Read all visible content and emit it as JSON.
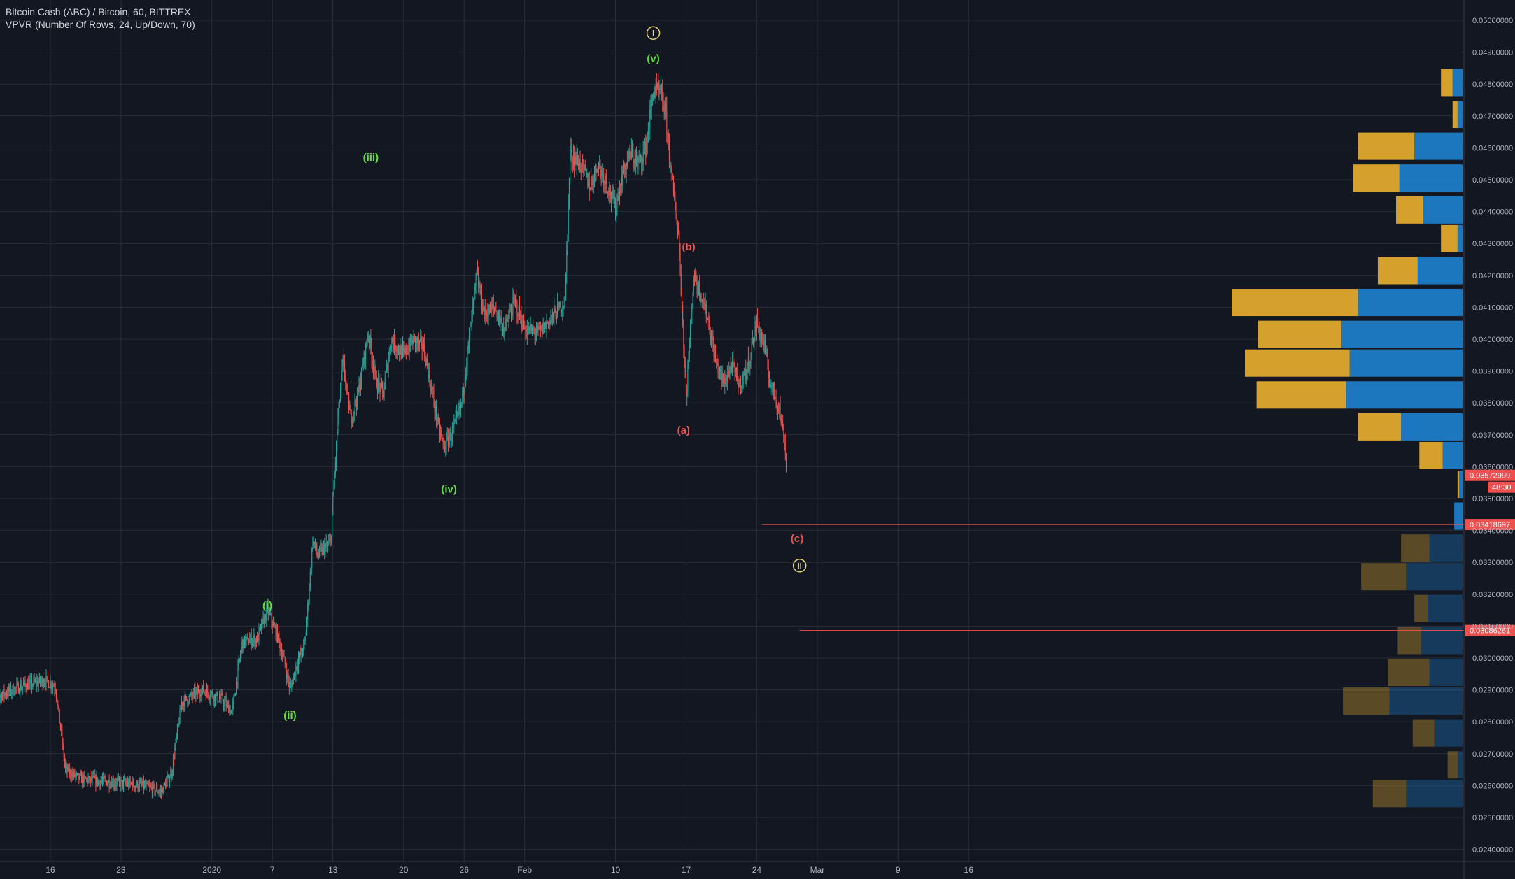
{
  "legend": {
    "symbol": "Bitcoin Cash (ABC) / Bitcoin, 60, BITTREX",
    "indicator": "VPVR (Number Of Rows, 24, Up/Down, 70)"
  },
  "colors": {
    "background": "#131722",
    "grid": "#2a2e39",
    "axis_text": "#b2b5be",
    "candle_up": "#26a69a",
    "candle_down": "#ef5350",
    "wave_green": "#66dd44",
    "wave_red": "#ef5350",
    "wave_yellow": "#e8d27a",
    "vp_up": "#e0a82e",
    "vp_down": "#1e7cc8",
    "level_line": "#ef4f4f",
    "price_tag": "#ef4f4f"
  },
  "chart_data": {
    "type": "candlestick",
    "y_axis": {
      "min": 0.024,
      "max": 0.05,
      "step": 0.001,
      "tick_labels": [
        "0.05000000",
        "0.04900000",
        "0.04800000",
        "0.04700000",
        "0.04600000",
        "0.04500000",
        "0.04400000",
        "0.04300000",
        "0.04200000",
        "0.04100000",
        "0.04000000",
        "0.03900000",
        "0.03800000",
        "0.03700000",
        "0.03600000",
        "0.03500000",
        "0.03400000",
        "0.03300000",
        "0.03200000",
        "0.03100000",
        "0.03000000",
        "0.02900000",
        "0.02800000",
        "0.02700000",
        "0.02600000",
        "0.02500000",
        "0.02400000"
      ]
    },
    "x_axis": {
      "tick_labels": [
        "16",
        "23",
        "2020",
        "7",
        "13",
        "20",
        "26",
        "Feb",
        "10",
        "17",
        "24",
        "Mar",
        "9",
        "16"
      ],
      "tick_dates": [
        "2019-12-16",
        "2019-12-23",
        "2020-01-01",
        "2020-01-07",
        "2020-01-13",
        "2020-01-20",
        "2020-01-26",
        "2020-02-01",
        "2020-02-10",
        "2020-02-17",
        "2020-02-24",
        "2020-03-01",
        "2020-03-09",
        "2020-03-16"
      ]
    },
    "price_path": [
      {
        "date": "2019-12-10T00",
        "price": 0.0287
      },
      {
        "date": "2019-12-13T00",
        "price": 0.0291
      },
      {
        "date": "2019-12-15T12",
        "price": 0.0293
      },
      {
        "date": "2019-12-16T12",
        "price": 0.0291
      },
      {
        "date": "2019-12-17T12",
        "price": 0.0265
      },
      {
        "date": "2019-12-19T00",
        "price": 0.0262
      },
      {
        "date": "2019-12-22T12",
        "price": 0.0261
      },
      {
        "date": "2019-12-25T00",
        "price": 0.026
      },
      {
        "date": "2019-12-27T00",
        "price": 0.0258
      },
      {
        "date": "2019-12-28T00",
        "price": 0.0264
      },
      {
        "date": "2019-12-29T00",
        "price": 0.0286
      },
      {
        "date": "2019-12-31T00",
        "price": 0.029
      },
      {
        "date": "2020-01-02T00",
        "price": 0.0287
      },
      {
        "date": "2020-01-03T00",
        "price": 0.0283
      },
      {
        "date": "2020-01-04T00",
        "price": 0.0305
      },
      {
        "date": "2020-01-05T12",
        "price": 0.0306
      },
      {
        "date": "2020-01-06T12",
        "price": 0.0315
      },
      {
        "date": "2020-01-07T12",
        "price": 0.0307
      },
      {
        "date": "2020-01-08T06",
        "price": 0.0298
      },
      {
        "date": "2020-01-08T18",
        "price": 0.029
      },
      {
        "date": "2020-01-09T12",
        "price": 0.0299
      },
      {
        "date": "2020-01-10T06",
        "price": 0.0305
      },
      {
        "date": "2020-01-11T00",
        "price": 0.0337
      },
      {
        "date": "2020-01-11T12",
        "price": 0.0332
      },
      {
        "date": "2020-01-12T00",
        "price": 0.0334
      },
      {
        "date": "2020-01-12T18",
        "price": 0.0336
      },
      {
        "date": "2020-01-13T12",
        "price": 0.0375
      },
      {
        "date": "2020-01-14T00",
        "price": 0.0393
      },
      {
        "date": "2020-01-14T18",
        "price": 0.0375
      },
      {
        "date": "2020-01-15T12",
        "price": 0.0383
      },
      {
        "date": "2020-01-16T12",
        "price": 0.0402
      },
      {
        "date": "2020-01-17T06",
        "price": 0.0387
      },
      {
        "date": "2020-01-18T00",
        "price": 0.0383
      },
      {
        "date": "2020-01-18T18",
        "price": 0.04
      },
      {
        "date": "2020-01-20T00",
        "price": 0.0395
      },
      {
        "date": "2020-01-21T00",
        "price": 0.04
      },
      {
        "date": "2020-01-22T00",
        "price": 0.0397
      },
      {
        "date": "2020-01-23T00",
        "price": 0.038
      },
      {
        "date": "2020-01-23T12",
        "price": 0.0372
      },
      {
        "date": "2020-01-24T00",
        "price": 0.0366
      },
      {
        "date": "2020-01-25T00",
        "price": 0.0372
      },
      {
        "date": "2020-01-25T18",
        "price": 0.038
      },
      {
        "date": "2020-01-26T12",
        "price": 0.04
      },
      {
        "date": "2020-01-27T06",
        "price": 0.042
      },
      {
        "date": "2020-01-28T00",
        "price": 0.0408
      },
      {
        "date": "2020-01-29T00",
        "price": 0.041
      },
      {
        "date": "2020-01-30T00",
        "price": 0.0403
      },
      {
        "date": "2020-01-31T00",
        "price": 0.0412
      },
      {
        "date": "2020-02-01T00",
        "price": 0.0403
      },
      {
        "date": "2020-02-02T12",
        "price": 0.0402
      },
      {
        "date": "2020-02-04T00",
        "price": 0.0408
      },
      {
        "date": "2020-02-05T00",
        "price": 0.0412
      },
      {
        "date": "2020-02-05T12",
        "price": 0.0458
      },
      {
        "date": "2020-02-06T12",
        "price": 0.0455
      },
      {
        "date": "2020-02-07T12",
        "price": 0.0448
      },
      {
        "date": "2020-02-08T06",
        "price": 0.0455
      },
      {
        "date": "2020-02-09T00",
        "price": 0.045
      },
      {
        "date": "2020-02-10T00",
        "price": 0.0441
      },
      {
        "date": "2020-02-10T18",
        "price": 0.0452
      },
      {
        "date": "2020-02-11T12",
        "price": 0.0458
      },
      {
        "date": "2020-02-12T06",
        "price": 0.0455
      },
      {
        "date": "2020-02-13T00",
        "price": 0.046
      },
      {
        "date": "2020-02-13T18",
        "price": 0.0478
      },
      {
        "date": "2020-02-14T12",
        "price": 0.0477
      },
      {
        "date": "2020-02-15T00",
        "price": 0.047
      },
      {
        "date": "2020-02-15T12",
        "price": 0.0452
      },
      {
        "date": "2020-02-16T06",
        "price": 0.0433
      },
      {
        "date": "2020-02-17T00",
        "price": 0.0382
      },
      {
        "date": "2020-02-17T18",
        "price": 0.042
      },
      {
        "date": "2020-02-18T12",
        "price": 0.0414
      },
      {
        "date": "2020-02-19T06",
        "price": 0.0405
      },
      {
        "date": "2020-02-20T00",
        "price": 0.0392
      },
      {
        "date": "2020-02-20T18",
        "price": 0.0386
      },
      {
        "date": "2020-02-21T12",
        "price": 0.0392
      },
      {
        "date": "2020-02-22T06",
        "price": 0.0386
      },
      {
        "date": "2020-02-23T00",
        "price": 0.039
      },
      {
        "date": "2020-02-24T00",
        "price": 0.0405
      },
      {
        "date": "2020-02-24T18",
        "price": 0.0398
      },
      {
        "date": "2020-02-25T06",
        "price": 0.0387
      },
      {
        "date": "2020-02-25T18",
        "price": 0.0383
      },
      {
        "date": "2020-02-26T06",
        "price": 0.0378
      },
      {
        "date": "2020-02-26T18",
        "price": 0.0368
      },
      {
        "date": "2020-02-27T00",
        "price": 0.0357
      }
    ],
    "wave_labels": [
      {
        "text": "(i)",
        "date": "2020-01-06T12",
        "price": 0.03165,
        "color": "green"
      },
      {
        "text": "(ii)",
        "date": "2020-01-08T18",
        "price": 0.0282,
        "color": "green"
      },
      {
        "text": "(iii)",
        "date": "2020-01-16T18",
        "price": 0.0457,
        "color": "green"
      },
      {
        "text": "(iv)",
        "date": "2020-01-24T12",
        "price": 0.0353,
        "color": "green"
      },
      {
        "text": "(v)",
        "date": "2020-02-13T18",
        "price": 0.0488,
        "color": "green"
      },
      {
        "text": "(a)",
        "date": "2020-02-16T18",
        "price": 0.03715,
        "color": "red"
      },
      {
        "text": "(b)",
        "date": "2020-02-17T06",
        "price": 0.0429,
        "color": "red"
      },
      {
        "text": "(c)",
        "date": "2020-02-28T00",
        "price": 0.03375,
        "color": "red"
      },
      {
        "text": "i",
        "date": "2020-02-13T18",
        "price": 0.0496,
        "color": "yellow",
        "circled": true
      },
      {
        "text": "ii",
        "date": "2020-02-28T06",
        "price": 0.0329,
        "color": "yellow",
        "circled": true
      }
    ],
    "horizontal_levels": [
      {
        "price": 0.03418697,
        "label": "0.03418697",
        "from_date": "2020-02-24T12"
      },
      {
        "price": 0.03086261,
        "label": "0.03086261",
        "from_date": "2020-02-28T06"
      }
    ],
    "current_price": {
      "price": 0.03572999,
      "label": "0.03572999",
      "countdown": "48:30"
    },
    "volume_profile": {
      "rows": [
        {
          "low": 0.0476,
          "high": 0.0485,
          "up": 0.7,
          "down": 0.6,
          "faded": false
        },
        {
          "low": 0.0466,
          "high": 0.0475,
          "up": 0.3,
          "down": 0.3,
          "faded": false
        },
        {
          "low": 0.0456,
          "high": 0.0465,
          "up": 3.4,
          "down": 2.9,
          "faded": false
        },
        {
          "low": 0.0446,
          "high": 0.0455,
          "up": 2.8,
          "down": 3.8,
          "faded": false
        },
        {
          "low": 0.0436,
          "high": 0.0445,
          "up": 1.6,
          "down": 2.4,
          "faded": false
        },
        {
          "low": 0.0427,
          "high": 0.0436,
          "up": 1.0,
          "down": 0.3,
          "faded": false
        },
        {
          "low": 0.0417,
          "high": 0.0426,
          "up": 2.4,
          "down": 2.7,
          "faded": false
        },
        {
          "low": 0.0407,
          "high": 0.0416,
          "up": 7.6,
          "down": 6.3,
          "faded": false
        },
        {
          "low": 0.0397,
          "high": 0.0406,
          "up": 5.0,
          "down": 7.3,
          "faded": false
        },
        {
          "low": 0.0388,
          "high": 0.0397,
          "up": 6.3,
          "down": 6.8,
          "faded": false
        },
        {
          "low": 0.0378,
          "high": 0.0387,
          "up": 5.4,
          "down": 7.0,
          "faded": false
        },
        {
          "low": 0.0368,
          "high": 0.0377,
          "up": 2.6,
          "down": 3.7,
          "faded": false
        },
        {
          "low": 0.0359,
          "high": 0.0368,
          "up": 1.4,
          "down": 1.2,
          "faded": false
        },
        {
          "low": 0.035,
          "high": 0.0359,
          "up": 0.1,
          "down": 0.2,
          "faded": false
        },
        {
          "low": 0.034,
          "high": 0.0349,
          "up": 0.0,
          "down": 0.5,
          "faded": false
        },
        {
          "low": 0.033,
          "high": 0.0339,
          "up": 1.7,
          "down": 2.0,
          "faded": true
        },
        {
          "low": 0.0321,
          "high": 0.033,
          "up": 2.7,
          "down": 3.4,
          "faded": true
        },
        {
          "low": 0.0311,
          "high": 0.032,
          "up": 0.8,
          "down": 2.1,
          "faded": true
        },
        {
          "low": 0.0301,
          "high": 0.031,
          "up": 1.4,
          "down": 2.5,
          "faded": true
        },
        {
          "low": 0.0291,
          "high": 0.03,
          "up": 2.5,
          "down": 2.0,
          "faded": true
        },
        {
          "low": 0.0282,
          "high": 0.0291,
          "up": 2.8,
          "down": 4.4,
          "faded": true
        },
        {
          "low": 0.0272,
          "high": 0.0281,
          "up": 1.3,
          "down": 1.7,
          "faded": true
        },
        {
          "low": 0.0262,
          "high": 0.0271,
          "up": 0.6,
          "down": 0.3,
          "faded": true
        },
        {
          "low": 0.0253,
          "high": 0.0262,
          "up": 2.0,
          "down": 3.4,
          "faded": true
        }
      ]
    }
  }
}
